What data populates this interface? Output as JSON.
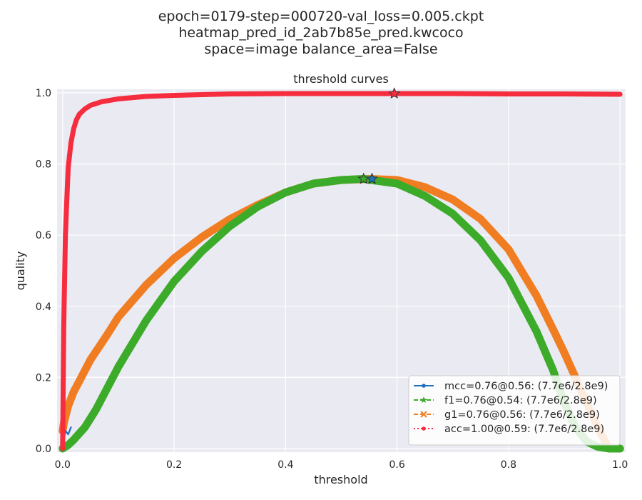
{
  "figure": {
    "suptitle_lines": [
      "epoch=0179-step=000720-val_loss=0.005.ckpt",
      "heatmap_pred_id_2ab7b85e_pred.kwcoco",
      "space=image balance_area=False"
    ]
  },
  "colors": {
    "background": "#eaeaf2",
    "grid": "#ffffff",
    "mcc": "#1f6fbf",
    "f1": "#3cab2a",
    "g1": "#f07d22",
    "acc": "#f52d3e"
  },
  "chart_data": {
    "type": "line",
    "title": "threshold curves",
    "xlabel": "threshold",
    "ylabel": "quality",
    "xlim": [
      -0.01,
      1.01
    ],
    "ylim": [
      -0.01,
      1.01
    ],
    "grid": true,
    "legend_position": "lower-right",
    "xticks": [
      0.0,
      0.2,
      0.4,
      0.6,
      0.8,
      1.0
    ],
    "xtick_labels": [
      "0.0",
      "0.2",
      "0.4",
      "0.6",
      "0.8",
      "1.0"
    ],
    "yticks": [
      0.0,
      0.2,
      0.4,
      0.6,
      0.8,
      1.0
    ],
    "ytick_labels": [
      "0.0",
      "0.2",
      "0.4",
      "0.6",
      "0.8",
      "1.0"
    ],
    "series": [
      {
        "key": "g1",
        "name": "g1=0.76@0.56: (7.7e6/2.8e9)",
        "marker": "x",
        "linestyle": "dashed",
        "best": {
          "x": 0.555,
          "y": 0.758
        },
        "x": [
          0.0,
          0.002,
          0.005,
          0.01,
          0.02,
          0.03,
          0.05,
          0.08,
          0.1,
          0.15,
          0.2,
          0.25,
          0.3,
          0.35,
          0.4,
          0.45,
          0.5,
          0.55,
          0.6,
          0.65,
          0.7,
          0.75,
          0.8,
          0.85,
          0.88,
          0.9,
          0.92,
          0.94,
          0.96,
          0.98,
          1.0
        ],
        "y": [
          0.05,
          0.07,
          0.09,
          0.12,
          0.16,
          0.19,
          0.25,
          0.32,
          0.37,
          0.46,
          0.535,
          0.595,
          0.645,
          0.685,
          0.72,
          0.745,
          0.755,
          0.758,
          0.755,
          0.735,
          0.7,
          0.645,
          0.56,
          0.43,
          0.335,
          0.27,
          0.2,
          0.13,
          0.06,
          0.0,
          0.0
        ]
      },
      {
        "key": "f1",
        "name": "f1=0.76@0.54: (7.7e6/2.8e9)",
        "marker": "star",
        "linestyle": "dashed",
        "best": {
          "x": 0.54,
          "y": 0.758
        },
        "x": [
          0.0,
          0.01,
          0.02,
          0.04,
          0.06,
          0.08,
          0.1,
          0.15,
          0.2,
          0.25,
          0.3,
          0.35,
          0.4,
          0.45,
          0.5,
          0.54,
          0.6,
          0.65,
          0.7,
          0.75,
          0.8,
          0.85,
          0.88,
          0.9,
          0.92,
          0.94,
          0.96,
          0.98,
          1.0
        ],
        "y": [
          0.0,
          0.01,
          0.025,
          0.06,
          0.11,
          0.17,
          0.23,
          0.36,
          0.47,
          0.555,
          0.625,
          0.68,
          0.72,
          0.745,
          0.755,
          0.758,
          0.745,
          0.71,
          0.66,
          0.585,
          0.48,
          0.33,
          0.22,
          0.13,
          0.06,
          0.02,
          0.005,
          0.0,
          0.0
        ]
      },
      {
        "key": "mcc",
        "name": "mcc=0.76@0.56: (7.7e6/2.8e9)",
        "marker": "point",
        "linestyle": "solid",
        "best": {
          "x": 0.555,
          "y": 0.758
        },
        "x": [
          0.0,
          0.005,
          0.01,
          0.015
        ],
        "y": [
          0.0,
          0.05,
          0.04,
          0.06
        ]
      },
      {
        "key": "acc",
        "name": "acc=1.00@0.59: (7.7e6/2.8e9)",
        "marker": "point",
        "linestyle": "dotted",
        "best": {
          "x": 0.595,
          "y": 0.998
        },
        "x": [
          0.0,
          0.002,
          0.005,
          0.008,
          0.01,
          0.015,
          0.02,
          0.025,
          0.03,
          0.04,
          0.05,
          0.07,
          0.1,
          0.15,
          0.2,
          0.3,
          0.4,
          0.5,
          0.6,
          0.7,
          0.8,
          0.9,
          1.0
        ],
        "y": [
          0.0,
          0.35,
          0.6,
          0.72,
          0.79,
          0.86,
          0.9,
          0.925,
          0.94,
          0.955,
          0.965,
          0.975,
          0.983,
          0.99,
          0.993,
          0.997,
          0.998,
          0.998,
          0.998,
          0.998,
          0.997,
          0.997,
          0.996
        ]
      }
    ],
    "legend_order": [
      "mcc",
      "f1",
      "g1",
      "acc"
    ]
  }
}
